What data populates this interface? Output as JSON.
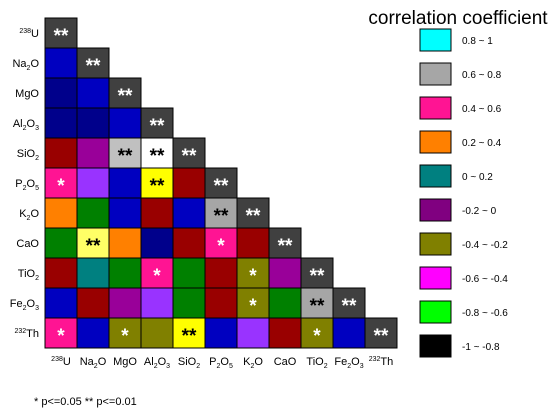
{
  "chart_data": {
    "type": "heatmap",
    "title": "correlation coefficient",
    "variables": [
      {
        "base": "",
        "sup": "238",
        "rest": "U"
      },
      {
        "base": "Na",
        "sub": "2",
        "rest": "O"
      },
      {
        "base": "MgO"
      },
      {
        "base": "Al",
        "sub": "2",
        "rest": "O",
        "sub2": "3"
      },
      {
        "base": "SiO",
        "sub": "2"
      },
      {
        "base": "P",
        "sub": "2",
        "rest": "O",
        "sub2": "5"
      },
      {
        "base": "K",
        "sub": "2",
        "rest": "O"
      },
      {
        "base": "CaO"
      },
      {
        "base": "TiO",
        "sub": "2"
      },
      {
        "base": "Fe",
        "sub": "2",
        "rest": "O",
        "sub2": "3"
      },
      {
        "base": "",
        "sup": "232",
        "rest": "Th"
      }
    ],
    "legend": [
      {
        "label": "0.8  ~ 1",
        "color": "#00ffff"
      },
      {
        "label": "0.6  ~ 0.8",
        "color": "#a6a6a6"
      },
      {
        "label": "0.4  ~ 0.6",
        "color": "#ff1493"
      },
      {
        "label": "0.2  ~ 0.4",
        "color": "#ff8000"
      },
      {
        "label": "0      ~ 0.2",
        "color": "#008080"
      },
      {
        "label": "-0.2 ~ 0",
        "color": "#800080"
      },
      {
        "label": "-0.4 ~ -0.2",
        "color": "#808000"
      },
      {
        "label": "-0.6 ~ -0.4",
        "color": "#ff00ff"
      },
      {
        "label": "-0.8 ~ -0.6",
        "color": "#00ff00"
      },
      {
        "label": "-1    ~ -0.8",
        "color": "#000000"
      }
    ],
    "cells": [
      [
        {
          "c": "#404040",
          "s": "**"
        }
      ],
      [
        {
          "c": "#0000c0",
          "s": ""
        },
        {
          "c": "#404040",
          "s": "**"
        }
      ],
      [
        {
          "c": "#00008b",
          "s": ""
        },
        {
          "c": "#0000c0",
          "s": ""
        },
        {
          "c": "#404040",
          "s": "**"
        }
      ],
      [
        {
          "c": "#00008b",
          "s": ""
        },
        {
          "c": "#00008b",
          "s": ""
        },
        {
          "c": "#0000c0",
          "s": ""
        },
        {
          "c": "#404040",
          "s": "**"
        }
      ],
      [
        {
          "c": "#990000",
          "s": ""
        },
        {
          "c": "#990099",
          "s": ""
        },
        {
          "c": "#c0c0c0",
          "s": "**"
        },
        {
          "c": "#ffffff",
          "s": "**"
        },
        {
          "c": "#404040",
          "s": "**"
        }
      ],
      [
        {
          "c": "#ff1493",
          "s": "*"
        },
        {
          "c": "#9933ff",
          "s": ""
        },
        {
          "c": "#0000c0",
          "s": ""
        },
        {
          "c": "#ffff00",
          "s": "**"
        },
        {
          "c": "#990000",
          "s": ""
        },
        {
          "c": "#404040",
          "s": "**"
        }
      ],
      [
        {
          "c": "#ff8000",
          "s": ""
        },
        {
          "c": "#008000",
          "s": ""
        },
        {
          "c": "#0000c0",
          "s": ""
        },
        {
          "c": "#990000",
          "s": ""
        },
        {
          "c": "#0000c0",
          "s": ""
        },
        {
          "c": "#a6a6a6",
          "s": "**"
        },
        {
          "c": "#404040",
          "s": "**"
        }
      ],
      [
        {
          "c": "#008000",
          "s": ""
        },
        {
          "c": "#ffff66",
          "s": "**"
        },
        {
          "c": "#ff8000",
          "s": ""
        },
        {
          "c": "#00008b",
          "s": ""
        },
        {
          "c": "#990000",
          "s": ""
        },
        {
          "c": "#ff1493",
          "s": "*"
        },
        {
          "c": "#990000",
          "s": ""
        },
        {
          "c": "#404040",
          "s": "**"
        }
      ],
      [
        {
          "c": "#990000",
          "s": ""
        },
        {
          "c": "#008080",
          "s": ""
        },
        {
          "c": "#008000",
          "s": ""
        },
        {
          "c": "#ff1493",
          "s": "*"
        },
        {
          "c": "#008000",
          "s": ""
        },
        {
          "c": "#990000",
          "s": ""
        },
        {
          "c": "#808000",
          "s": "*"
        },
        {
          "c": "#990099",
          "s": ""
        },
        {
          "c": "#404040",
          "s": "**"
        }
      ],
      [
        {
          "c": "#0000c0",
          "s": ""
        },
        {
          "c": "#990000",
          "s": ""
        },
        {
          "c": "#990099",
          "s": ""
        },
        {
          "c": "#9933ff",
          "s": ""
        },
        {
          "c": "#008000",
          "s": ""
        },
        {
          "c": "#990000",
          "s": ""
        },
        {
          "c": "#808000",
          "s": "*"
        },
        {
          "c": "#008000",
          "s": ""
        },
        {
          "c": "#a6a6a6",
          "s": "**"
        },
        {
          "c": "#404040",
          "s": "**"
        }
      ],
      [
        {
          "c": "#ff1493",
          "s": "*"
        },
        {
          "c": "#0000c0",
          "s": ""
        },
        {
          "c": "#808000",
          "s": "*"
        },
        {
          "c": "#808000",
          "s": ""
        },
        {
          "c": "#ffff00",
          "s": "**"
        },
        {
          "c": "#0000c0",
          "s": ""
        },
        {
          "c": "#9933ff",
          "s": ""
        },
        {
          "c": "#990000",
          "s": ""
        },
        {
          "c": "#808000",
          "s": "*"
        },
        {
          "c": "#0000c0",
          "s": ""
        },
        {
          "c": "#404040",
          "s": "**"
        }
      ]
    ],
    "note": "* p<=0.05  ** p<=0.01"
  }
}
